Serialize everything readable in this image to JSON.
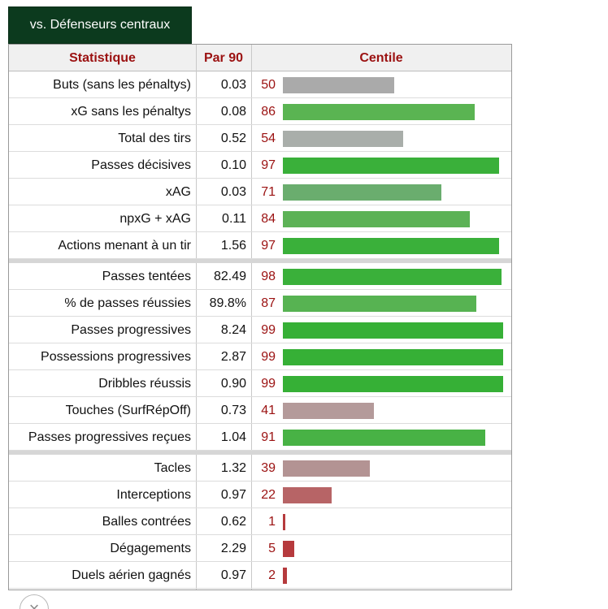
{
  "tab_label": "vs. Défenseurs centraux",
  "chart_data": {
    "type": "bar",
    "headers": {
      "stat": "Statistique",
      "per90": "Par 90",
      "percentile": "Centile"
    },
    "xlim": [
      0,
      100
    ],
    "groups": [
      [
        {
          "label": "Buts (sans les pénaltys)",
          "per90": "0.03",
          "percentile": 50,
          "color": "#aaaaaa"
        },
        {
          "label": "xG sans les pénaltys",
          "per90": "0.08",
          "percentile": 86,
          "color": "#5ab452"
        },
        {
          "label": "Total des tirs",
          "per90": "0.52",
          "percentile": 54,
          "color": "#a9aeaa"
        },
        {
          "label": "Passes décisives",
          "per90": "0.10",
          "percentile": 97,
          "color": "#3ab03a"
        },
        {
          "label": "xAG",
          "per90": "0.03",
          "percentile": 71,
          "color": "#6aad6e"
        },
        {
          "label": "npxG + xAG",
          "per90": "0.11",
          "percentile": 84,
          "color": "#5cb256"
        },
        {
          "label": "Actions menant à un tir",
          "per90": "1.56",
          "percentile": 97,
          "color": "#3ab03a"
        }
      ],
      [
        {
          "label": "Passes tentées",
          "per90": "82.49",
          "percentile": 98,
          "color": "#3ab03a"
        },
        {
          "label": "% de passes réussies",
          "per90": "89.8%",
          "percentile": 87,
          "color": "#57b352"
        },
        {
          "label": "Passes progressives",
          "per90": "8.24",
          "percentile": 99,
          "color": "#36b036"
        },
        {
          "label": "Possessions progressives",
          "per90": "2.87",
          "percentile": 99,
          "color": "#36b036"
        },
        {
          "label": "Dribbles réussis",
          "per90": "0.90",
          "percentile": 99,
          "color": "#36b036"
        },
        {
          "label": "Touches (SurfRépOff)",
          "per90": "0.73",
          "percentile": 41,
          "color": "#b49a9a"
        },
        {
          "label": "Passes progressives reçues",
          "per90": "1.04",
          "percentile": 91,
          "color": "#48b245"
        }
      ],
      [
        {
          "label": "Tacles",
          "per90": "1.32",
          "percentile": 39,
          "color": "#b39393"
        },
        {
          "label": "Interceptions",
          "per90": "0.97",
          "percentile": 22,
          "color": "#b76466"
        },
        {
          "label": "Balles contrées",
          "per90": "0.62",
          "percentile": 1,
          "color": "#b63a3d"
        },
        {
          "label": "Dégagements",
          "per90": "2.29",
          "percentile": 5,
          "color": "#b63a3d"
        },
        {
          "label": "Duels aérien gagnés",
          "per90": "0.97",
          "percentile": 2,
          "color": "#b63a3d"
        }
      ]
    ]
  },
  "close_icon": "close-icon",
  "close_glyph": "×"
}
